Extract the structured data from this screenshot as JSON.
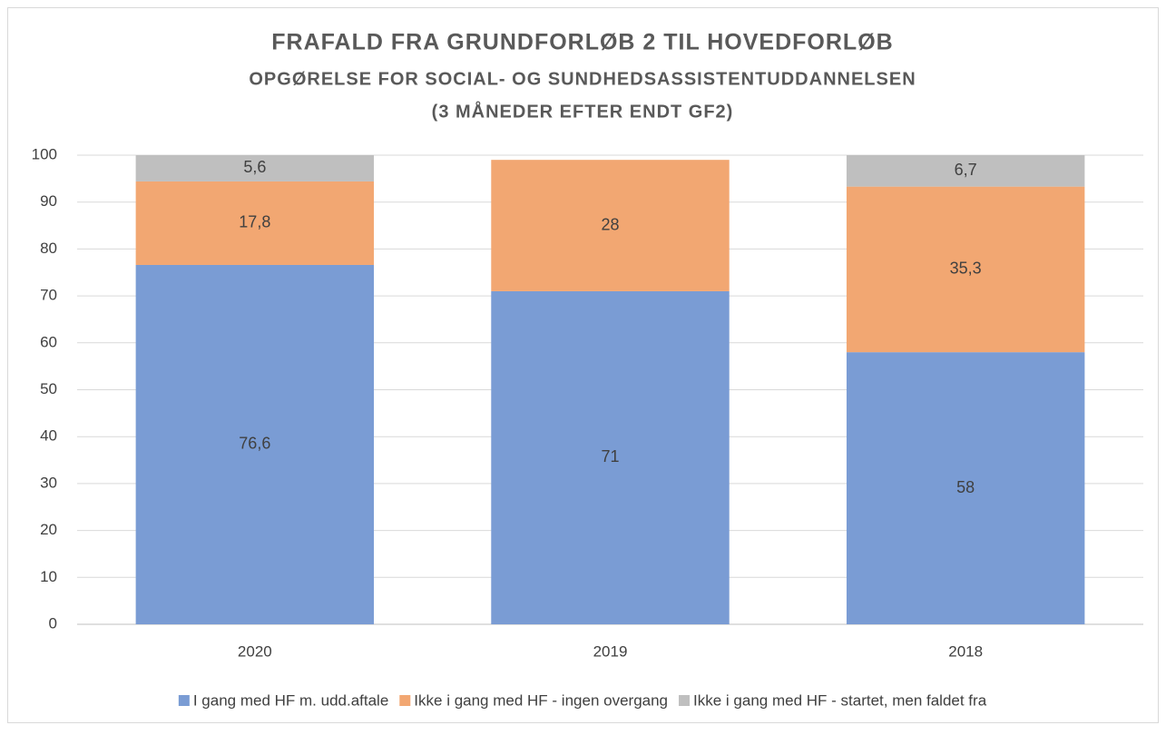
{
  "chart_data": {
    "type": "stacked_bar",
    "title": "FRAFALD FRA GRUNDFORLØB 2 TIL HOVEDFORLØB",
    "subtitle": [
      "OPGØRELSE FOR SOCIAL- OG SUNDHEDSASSISTENTUDDANNELSEN",
      "(3 MÅNEDER EFTER ENDT GF2)"
    ],
    "categories": [
      "2020",
      "2019",
      "2018"
    ],
    "series": [
      {
        "name": "I gang med HF m. udd.aftale",
        "color": "#7a9cd4",
        "values": [
          76.6,
          71,
          58
        ],
        "value_labels": [
          "76,6",
          "71",
          "58"
        ]
      },
      {
        "name": "Ikke i gang med HF - ingen overgang",
        "color": "#f2a772",
        "values": [
          17.8,
          28,
          35.3
        ],
        "value_labels": [
          "17,8",
          "28",
          "35,3"
        ]
      },
      {
        "name": "Ikke i gang med HF - startet, men faldet fra",
        "color": "#bfbfbf",
        "values": [
          5.6,
          null,
          6.7
        ],
        "value_labels": [
          "5,6",
          null,
          "6,7"
        ]
      }
    ],
    "ylim": [
      0,
      100
    ],
    "yticks": [
      0,
      10,
      20,
      30,
      40,
      50,
      60,
      70,
      80,
      90,
      100
    ],
    "grid": true,
    "legend": "bottom"
  }
}
